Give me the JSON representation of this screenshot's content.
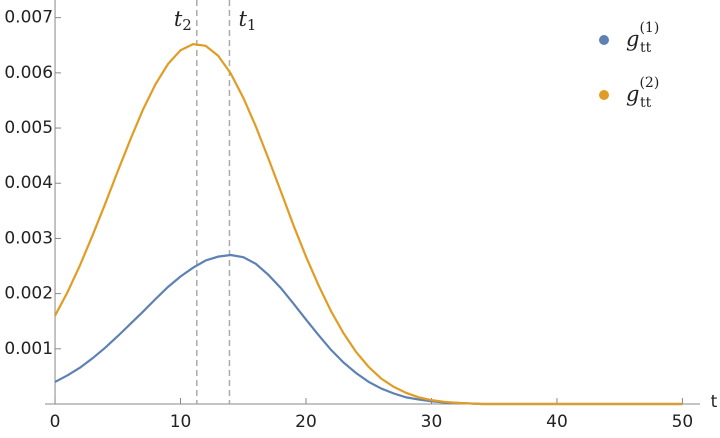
{
  "chart_data": {
    "type": "line",
    "xlabel": "t",
    "x": [
      0,
      1,
      2,
      3,
      4,
      5,
      6,
      7,
      8,
      9,
      10,
      11,
      12,
      13,
      14,
      15,
      16,
      17,
      18,
      19,
      20,
      21,
      22,
      23,
      24,
      25,
      26,
      27,
      28,
      29,
      30,
      31,
      32,
      33,
      34,
      35,
      36,
      37,
      38,
      39,
      40,
      41,
      42,
      43,
      44,
      45,
      46,
      47,
      48,
      49,
      50
    ],
    "series": [
      {
        "name": "g",
        "name_sub": "tt",
        "name_sup": "(1)",
        "color": "#5e81b5",
        "values": [
          0.0004,
          0.00052,
          0.00066,
          0.00083,
          0.00102,
          0.00123,
          0.00145,
          0.00167,
          0.0019,
          0.00212,
          0.00231,
          0.00247,
          0.0026,
          0.00267,
          0.0027,
          0.00266,
          0.00254,
          0.00234,
          0.0021,
          0.00182,
          0.00153,
          0.00125,
          0.00098,
          0.00075,
          0.00056,
          0.0004,
          0.00028,
          0.00019,
          0.00012,
          8e-05,
          5e-05,
          3e-05,
          2e-05,
          1e-05,
          0,
          0,
          0,
          0,
          0,
          0,
          0,
          0,
          0,
          0,
          0,
          0,
          0,
          0,
          0,
          0,
          0
        ]
      },
      {
        "name": "g",
        "name_sub": "tt",
        "name_sup": "(2)",
        "color": "#e19c24",
        "values": [
          0.0016,
          0.00203,
          0.00252,
          0.00306,
          0.00363,
          0.00422,
          0.00479,
          0.00533,
          0.00579,
          0.00616,
          0.00641,
          0.00652,
          0.00649,
          0.00631,
          0.00599,
          0.00555,
          0.00503,
          0.00445,
          0.00385,
          0.00324,
          0.00267,
          0.00215,
          0.00168,
          0.00128,
          0.00094,
          0.00067,
          0.00046,
          0.00031,
          0.0002,
          0.00012,
          7e-05,
          4e-05,
          2e-05,
          1e-05,
          0,
          0,
          0,
          0,
          0,
          0,
          0,
          0,
          0,
          0,
          0,
          0,
          0,
          0,
          0,
          0,
          0
        ]
      }
    ],
    "annotations": [
      {
        "x": 11.3,
        "text": "t",
        "subscript": "2"
      },
      {
        "x": 13.9,
        "text": "t",
        "subscript": "1"
      }
    ],
    "xlim": [
      -0.8,
      51.4
    ],
    "xticks": [
      0,
      10,
      20,
      30,
      40,
      50
    ],
    "ylim": [
      0,
      0.00732
    ],
    "yticks": [
      0.001,
      0.002,
      0.003,
      0.004,
      0.005,
      0.006,
      0.007
    ],
    "legend": "top-right"
  }
}
